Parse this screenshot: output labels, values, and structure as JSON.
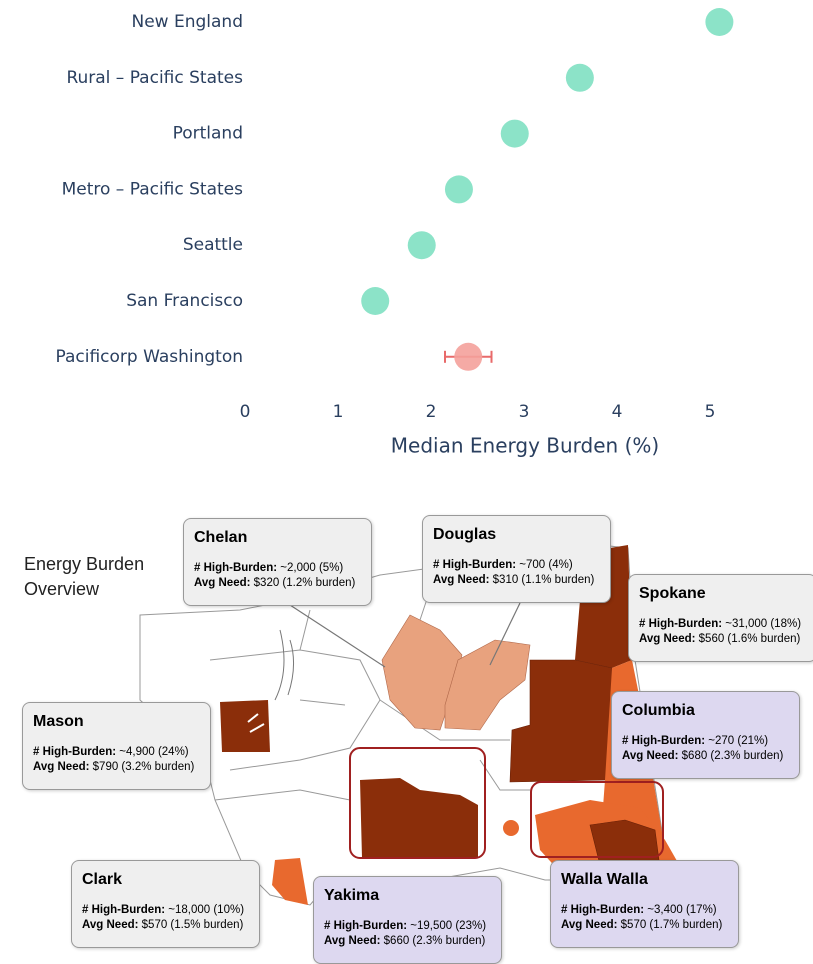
{
  "chart_data": {
    "type": "dot",
    "categories": [
      "New England",
      "Rural – Pacific States",
      "Portland",
      "Metro – Pacific States",
      "Seattle",
      "San Francisco",
      "Pacificorp Washington"
    ],
    "values": [
      5.1,
      3.6,
      2.9,
      2.3,
      1.9,
      1.4,
      2.4
    ],
    "errors": [
      null,
      null,
      null,
      null,
      null,
      null,
      0.25
    ],
    "colors": [
      "#7fe0c2",
      "#7fe0c2",
      "#7fe0c2",
      "#7fe0c2",
      "#7fe0c2",
      "#7fe0c2",
      "#f4a19b"
    ],
    "error_color": "#e86a6a",
    "xlabel": "Median Energy Burden (%)",
    "xlim": [
      0,
      5.3
    ],
    "xticks": [
      0,
      1,
      2,
      3,
      4,
      5
    ],
    "grid": false
  },
  "map": {
    "title": "Energy Burden Overview",
    "high_burden_label": "# High-Burden:",
    "avg_need_label": "Avg Need:",
    "callouts": [
      {
        "name": "Chelan",
        "high_burden": "~2,000 (5%)",
        "avg_need": "$320 (1.2% burden)",
        "color": "#efefef"
      },
      {
        "name": "Douglas",
        "high_burden": "~700 (4%)",
        "avg_need": "$310 (1.1% burden)",
        "color": "#efefef"
      },
      {
        "name": "Spokane",
        "high_burden": "~31,000 (18%)",
        "avg_need": "$560 (1.6% burden)",
        "color": "#efefef"
      },
      {
        "name": "Mason",
        "high_burden": "~4,900 (24%)",
        "avg_need": "$790 (3.2% burden)",
        "color": "#efefef"
      },
      {
        "name": "Columbia",
        "high_burden": "~270 (21%)",
        "avg_need": "$680 (2.3% burden)",
        "color": "#ddd8f0"
      },
      {
        "name": "Clark",
        "high_burden": "~18,000 (10%)",
        "avg_need": "$570 (1.5% burden)",
        "color": "#efefef"
      },
      {
        "name": "Yakima",
        "high_burden": "~19,500 (23%)",
        "avg_need": "$660 (2.3% burden)",
        "color": "#ddd8f0"
      },
      {
        "name": "Walla Walla",
        "high_burden": "~3,400 (17%)",
        "avg_need": "$570 (1.7% burden)",
        "color": "#ddd8f0"
      }
    ]
  }
}
